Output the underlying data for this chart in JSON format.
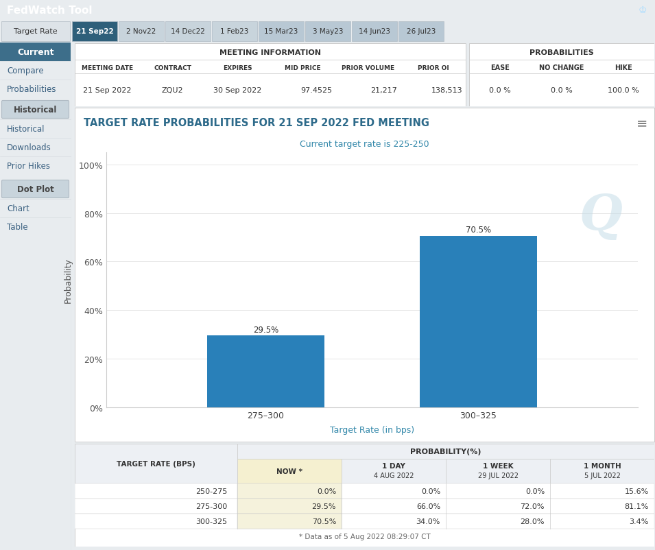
{
  "header_color": "#4a6f8a",
  "header_text": "FedWatch Tool",
  "header_text_color": "#ffffff",
  "tab_labels": [
    "Target Rate",
    "21 Sep22",
    "2 Nov22",
    "14 Dec22",
    "1 Feb23",
    "15 Mar23",
    "3 May23",
    "14 Jun23",
    "26 Jul23"
  ],
  "meeting_info_title": "MEETING INFORMATION",
  "meeting_headers": [
    "MEETING DATE",
    "CONTRACT",
    "EXPIRES",
    "MID PRICE",
    "PRIOR VOLUME",
    "PRIOR OI"
  ],
  "meeting_values": [
    "21 Sep 2022",
    "ZQU2",
    "30 Sep 2022",
    "97.4525",
    "21,217",
    "138,513"
  ],
  "prob_title": "PROBABILITIES",
  "prob_headers": [
    "EASE",
    "NO CHANGE",
    "HIKE"
  ],
  "prob_values": [
    "0.0 %",
    "0.0 %",
    "100.0 %"
  ],
  "chart_title": "TARGET RATE PROBABILITIES FOR 21 SEP 2022 FED MEETING",
  "chart_subtitle": "Current target rate is 225-250",
  "chart_title_color": "#2d6a8a",
  "chart_subtitle_color": "#3388aa",
  "bar_categories": [
    "275–300",
    "300–325"
  ],
  "bar_values": [
    29.5,
    70.5
  ],
  "bar_color": "#2980b9",
  "bar_labels": [
    "29.5%",
    "70.5%"
  ],
  "xlabel": "Target Rate (in bps)",
  "ylabel": "Probability",
  "xlabel_color": "#3388aa",
  "ylabel_color": "#555555",
  "ytick_labels": [
    "0%",
    "20%",
    "40%",
    "60%",
    "80%",
    "100%"
  ],
  "ytick_values": [
    0,
    20,
    40,
    60,
    80,
    100
  ],
  "table2_title": "PROBABILITY(%)",
  "table2_col1_header": "TARGET RATE (BPS)",
  "table2_col_headers": [
    "NOW *",
    "1 DAY\n4 AUG 2022",
    "1 WEEK\n29 JUL 2022",
    "1 MONTH\n5 JUL 2022"
  ],
  "table2_rows": [
    [
      "250-275",
      "0.0%",
      "0.0%",
      "0.0%",
      "15.6%"
    ],
    [
      "275-300",
      "29.5%",
      "66.0%",
      "72.0%",
      "81.1%"
    ],
    [
      "300-325",
      "70.5%",
      "34.0%",
      "28.0%",
      "3.4%"
    ]
  ],
  "footnote": "* Data as of 5 Aug 2022 08:29:07 CT",
  "bg_color": "#e8ecef",
  "panel_bg": "#ffffff",
  "border_color": "#cccccc",
  "grid_color": "#e0e0e0",
  "TW": 955,
  "TH": 803
}
